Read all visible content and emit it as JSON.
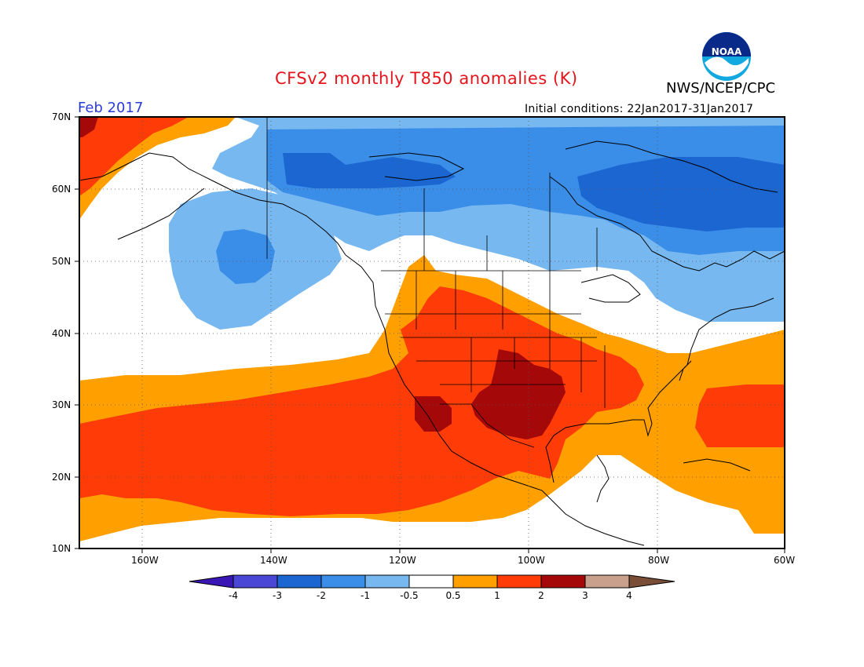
{
  "header": {
    "title": "CFSv2 monthly T850 anomalies (K)",
    "month": "Feb 2017",
    "agency": "NWS/NCEP/CPC",
    "initial_conditions": "Initial conditions: 22Jan2017-31Jan2017",
    "logo_text": "NOAA"
  },
  "map": {
    "lat_labels": [
      "70N",
      "60N",
      "50N",
      "40N",
      "30N",
      "20N",
      "10N"
    ],
    "lon_labels": [
      "160W",
      "140W",
      "120W",
      "100W",
      "80W",
      "60W"
    ]
  },
  "colorbar": {
    "ticks": [
      "-4",
      "-3",
      "-2",
      "-1",
      "-0.5",
      "0.5",
      "1",
      "2",
      "3",
      "4"
    ],
    "colors": [
      "#3a16b4",
      "#4a46d6",
      "#1c66d2",
      "#3a8ee8",
      "#78b8f0",
      "#ffffff",
      "#ffa000",
      "#ff3c08",
      "#a40808",
      "#c8a08c",
      "#7a4e36"
    ]
  }
}
